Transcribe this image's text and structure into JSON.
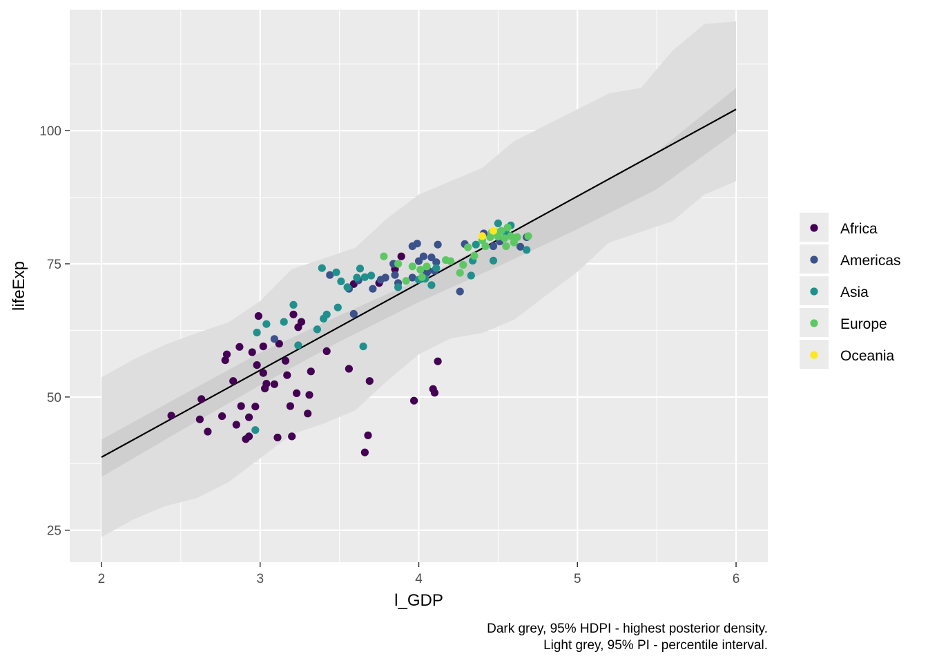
{
  "chart_data": {
    "type": "scatter",
    "xlabel": "l_GDP",
    "ylabel": "lifeExp",
    "xlim": [
      1.8,
      6.2
    ],
    "ylim": [
      19,
      122.7
    ],
    "x_ticks": [
      2,
      3,
      4,
      5,
      6
    ],
    "y_ticks": [
      25,
      50,
      75,
      100
    ],
    "x_tick_labels": [
      "2",
      "3",
      "4",
      "5",
      "6"
    ],
    "y_tick_labels": [
      "25",
      "50",
      "75",
      "100"
    ],
    "grid": true,
    "legend_position": "right",
    "caption": [
      "Dark grey, 95% HDPI - highest posterior density.",
      "Light grey, 95% PI - percentile interval."
    ],
    "regression_line": {
      "x": [
        2,
        6
      ],
      "y": [
        38.7,
        104.0
      ]
    },
    "hpdi_band": {
      "x": [
        2,
        2.5,
        3,
        3.5,
        4,
        4.5,
        5,
        5.5,
        6
      ],
      "lower": [
        35.0,
        43.7,
        52.2,
        60.4,
        67.8,
        74.5,
        81.5,
        89.0,
        99.7
      ],
      "upper": [
        42.0,
        50.2,
        58.3,
        65.3,
        72.0,
        79.7,
        87.6,
        96.0,
        108.0
      ]
    },
    "pi_band": {
      "x": [
        2,
        2.2,
        2.4,
        2.6,
        2.8,
        3.0,
        3.2,
        3.4,
        3.6,
        3.8,
        4.0,
        4.2,
        4.4,
        4.6,
        4.8,
        5.0,
        5.2,
        5.4,
        5.6,
        5.8,
        6.0
      ],
      "lower": [
        23.7,
        27.0,
        29.5,
        31.0,
        34.0,
        38.5,
        43.0,
        45.0,
        47.5,
        53.0,
        58.0,
        61.0,
        62.0,
        64.5,
        69.0,
        73.5,
        79.0,
        81.0,
        83.0,
        88.0,
        90.5
      ],
      "upper": [
        53.7,
        57.0,
        59.8,
        62.0,
        64.0,
        68.0,
        74.0,
        76.0,
        78.0,
        83.5,
        88.0,
        90.5,
        93.0,
        98.0,
        101.0,
        104.0,
        107.0,
        108.0,
        115.0,
        120.0,
        120.5
      ]
    },
    "series": [
      {
        "name": "Africa",
        "color": "#440154",
        "points": [
          [
            2.44,
            46.5
          ],
          [
            2.62,
            45.8
          ],
          [
            2.63,
            49.6
          ],
          [
            2.67,
            43.5
          ],
          [
            2.76,
            46.4
          ],
          [
            2.78,
            56.9
          ],
          [
            2.79,
            58.0
          ],
          [
            2.83,
            53.0
          ],
          [
            2.85,
            44.8
          ],
          [
            2.87,
            59.4
          ],
          [
            2.88,
            48.3
          ],
          [
            2.91,
            42.1
          ],
          [
            2.93,
            46.2
          ],
          [
            2.93,
            42.6
          ],
          [
            2.95,
            58.4
          ],
          [
            2.97,
            48.2
          ],
          [
            2.98,
            56.0
          ],
          [
            2.99,
            65.2
          ],
          [
            3.02,
            59.5
          ],
          [
            3.02,
            54.5
          ],
          [
            3.03,
            51.6
          ],
          [
            3.04,
            52.5
          ],
          [
            3.09,
            52.4
          ],
          [
            3.11,
            42.4
          ],
          [
            3.12,
            60.0
          ],
          [
            3.16,
            56.8
          ],
          [
            3.17,
            54.1
          ],
          [
            3.19,
            48.3
          ],
          [
            3.2,
            42.6
          ],
          [
            3.21,
            65.5
          ],
          [
            3.23,
            50.7
          ],
          [
            3.24,
            63.1
          ],
          [
            3.26,
            64.1
          ],
          [
            3.3,
            46.9
          ],
          [
            3.31,
            50.4
          ],
          [
            3.32,
            54.8
          ],
          [
            3.42,
            58.6
          ],
          [
            3.56,
            55.3
          ],
          [
            3.59,
            71.2
          ],
          [
            3.66,
            39.6
          ],
          [
            3.68,
            42.8
          ],
          [
            3.69,
            53.0
          ],
          [
            3.75,
            71.4
          ],
          [
            3.85,
            74.0
          ],
          [
            3.89,
            76.4
          ],
          [
            3.97,
            49.3
          ],
          [
            4.09,
            51.5
          ],
          [
            4.1,
            50.8
          ],
          [
            4.12,
            56.7
          ]
        ]
      },
      {
        "name": "Americas",
        "color": "#3B528B",
        "points": [
          [
            3.09,
            60.9
          ],
          [
            3.44,
            72.9
          ],
          [
            3.56,
            70.3
          ],
          [
            3.59,
            65.6
          ],
          [
            3.62,
            71.9
          ],
          [
            3.71,
            70.3
          ],
          [
            3.76,
            72.0
          ],
          [
            3.79,
            72.4
          ],
          [
            3.84,
            75.0
          ],
          [
            3.85,
            72.9
          ],
          [
            3.87,
            71.4
          ],
          [
            3.96,
            78.3
          ],
          [
            3.96,
            72.4
          ],
          [
            3.99,
            78.8
          ],
          [
            4.0,
            75.5
          ],
          [
            4.03,
            76.4
          ],
          [
            4.05,
            73.3
          ],
          [
            4.06,
            73.7
          ],
          [
            4.08,
            76.2
          ],
          [
            4.1,
            73.7
          ],
          [
            4.11,
            75.3
          ],
          [
            4.12,
            78.6
          ],
          [
            4.26,
            69.8
          ],
          [
            4.29,
            78.7
          ],
          [
            4.41,
            80.7
          ],
          [
            4.47,
            78.3
          ],
          [
            4.51,
            79.2
          ],
          [
            4.64,
            78.2
          ],
          [
            4.68,
            80.0
          ]
        ]
      },
      {
        "name": "Asia",
        "color": "#21908C",
        "points": [
          [
            2.97,
            43.8
          ],
          [
            2.98,
            62.1
          ],
          [
            3.04,
            63.7
          ],
          [
            3.15,
            64.1
          ],
          [
            3.21,
            67.3
          ],
          [
            3.24,
            59.7
          ],
          [
            3.36,
            62.7
          ],
          [
            3.39,
            74.2
          ],
          [
            3.4,
            64.7
          ],
          [
            3.42,
            65.5
          ],
          [
            3.48,
            73.4
          ],
          [
            3.49,
            66.8
          ],
          [
            3.51,
            71.7
          ],
          [
            3.55,
            70.6
          ],
          [
            3.61,
            72.4
          ],
          [
            3.63,
            74.1
          ],
          [
            3.65,
            59.5
          ],
          [
            3.66,
            72.5
          ],
          [
            3.7,
            72.8
          ],
          [
            3.87,
            70.6
          ],
          [
            4.0,
            72.0
          ],
          [
            4.04,
            72.2
          ],
          [
            4.08,
            71.0
          ],
          [
            4.11,
            74.2
          ],
          [
            4.33,
            72.8
          ],
          [
            4.34,
            75.6
          ],
          [
            4.36,
            78.6
          ],
          [
            4.47,
            75.6
          ],
          [
            4.5,
            82.6
          ],
          [
            4.55,
            80.7
          ],
          [
            4.58,
            82.2
          ],
          [
            4.68,
            77.6
          ]
        ]
      },
      {
        "name": "Europe",
        "color": "#5DC863",
        "points": [
          [
            3.78,
            76.4
          ],
          [
            3.87,
            75.0
          ],
          [
            3.92,
            71.8
          ],
          [
            3.96,
            74.5
          ],
          [
            4.01,
            73.9
          ],
          [
            4.02,
            72.5
          ],
          [
            4.05,
            74.5
          ],
          [
            4.17,
            75.7
          ],
          [
            4.2,
            75.5
          ],
          [
            4.26,
            73.3
          ],
          [
            4.28,
            74.8
          ],
          [
            4.31,
            78.1
          ],
          [
            4.35,
            76.5
          ],
          [
            4.4,
            79.4
          ],
          [
            4.42,
            78.3
          ],
          [
            4.45,
            80.0
          ],
          [
            4.46,
            80.9
          ],
          [
            4.48,
            81.0
          ],
          [
            4.5,
            80.1
          ],
          [
            4.52,
            81.2
          ],
          [
            4.54,
            79.8
          ],
          [
            4.55,
            78.3
          ],
          [
            4.56,
            81.8
          ],
          [
            4.58,
            80.2
          ],
          [
            4.6,
            79.0
          ],
          [
            4.62,
            80.0
          ],
          [
            4.69,
            80.2
          ]
        ]
      },
      {
        "name": "Oceania",
        "color": "#FDE725",
        "points": [
          [
            4.4,
            80.2
          ],
          [
            4.47,
            81.2
          ]
        ]
      }
    ]
  }
}
